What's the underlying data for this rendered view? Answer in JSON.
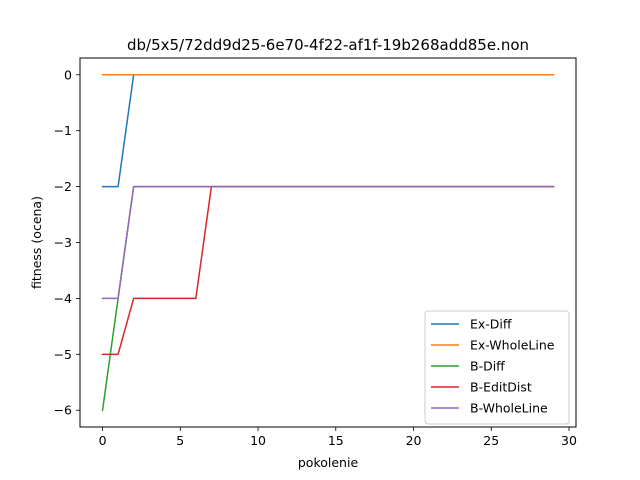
{
  "chart_data": {
    "type": "line",
    "title": "db/5x5/72dd9d25-6e70-4f22-af1f-19b268add85e.non",
    "xlabel": "pokolenie",
    "ylabel": "fitness (ocena)",
    "xlim": [
      -1.45,
      30.45
    ],
    "ylim": [
      -6.3,
      0.3
    ],
    "xticks": [
      0,
      5,
      10,
      15,
      20,
      25,
      30
    ],
    "yticks": [
      0,
      -1,
      -2,
      -3,
      -4,
      -5,
      -6
    ],
    "xtick_labels": [
      "0",
      "5",
      "10",
      "15",
      "20",
      "25",
      "30"
    ],
    "ytick_labels": [
      "0",
      "−1",
      "−2",
      "−3",
      "−4",
      "−5",
      "−6"
    ],
    "grid": false,
    "legend_position": "lower-right",
    "x": [
      0,
      1,
      2,
      3,
      4,
      5,
      6,
      7,
      8,
      9,
      10,
      11,
      12,
      13,
      14,
      15,
      16,
      17,
      18,
      19,
      20,
      21,
      22,
      23,
      24,
      25,
      26,
      27,
      28,
      29
    ],
    "series": [
      {
        "name": "Ex-Diff",
        "color": "#1f77b4",
        "values": [
          -2,
          -2,
          0,
          0,
          0,
          0,
          0,
          0,
          0,
          0,
          0,
          0,
          0,
          0,
          0,
          0,
          0,
          0,
          0,
          0,
          0,
          0,
          0,
          0,
          0,
          0,
          0,
          0,
          0,
          0
        ]
      },
      {
        "name": "Ex-WholeLine",
        "color": "#ff7f0e",
        "values": [
          0,
          0,
          0,
          0,
          0,
          0,
          0,
          0,
          0,
          0,
          0,
          0,
          0,
          0,
          0,
          0,
          0,
          0,
          0,
          0,
          0,
          0,
          0,
          0,
          0,
          0,
          0,
          0,
          0,
          0
        ]
      },
      {
        "name": "B-Diff",
        "color": "#2ca02c",
        "values": [
          -6,
          -4,
          -2,
          -2,
          -2,
          -2,
          -2,
          -2,
          -2,
          -2,
          -2,
          -2,
          -2,
          -2,
          -2,
          -2,
          -2,
          -2,
          -2,
          -2,
          -2,
          -2,
          -2,
          -2,
          -2,
          -2,
          -2,
          -2,
          -2,
          -2
        ]
      },
      {
        "name": "B-EditDist",
        "color": "#d62728",
        "values": [
          -5,
          -5,
          -4,
          -4,
          -4,
          -4,
          -4,
          -2,
          -2,
          -2,
          -2,
          -2,
          -2,
          -2,
          -2,
          -2,
          -2,
          -2,
          -2,
          -2,
          -2,
          -2,
          -2,
          -2,
          -2,
          -2,
          -2,
          -2,
          -2,
          -2
        ]
      },
      {
        "name": "B-WholeLine",
        "color": "#9467bd",
        "values": [
          -4,
          -4,
          -2,
          -2,
          -2,
          -2,
          -2,
          -2,
          -2,
          -2,
          -2,
          -2,
          -2,
          -2,
          -2,
          -2,
          -2,
          -2,
          -2,
          -2,
          -2,
          -2,
          -2,
          -2,
          -2,
          -2,
          -2,
          -2,
          -2,
          -2
        ]
      }
    ]
  }
}
